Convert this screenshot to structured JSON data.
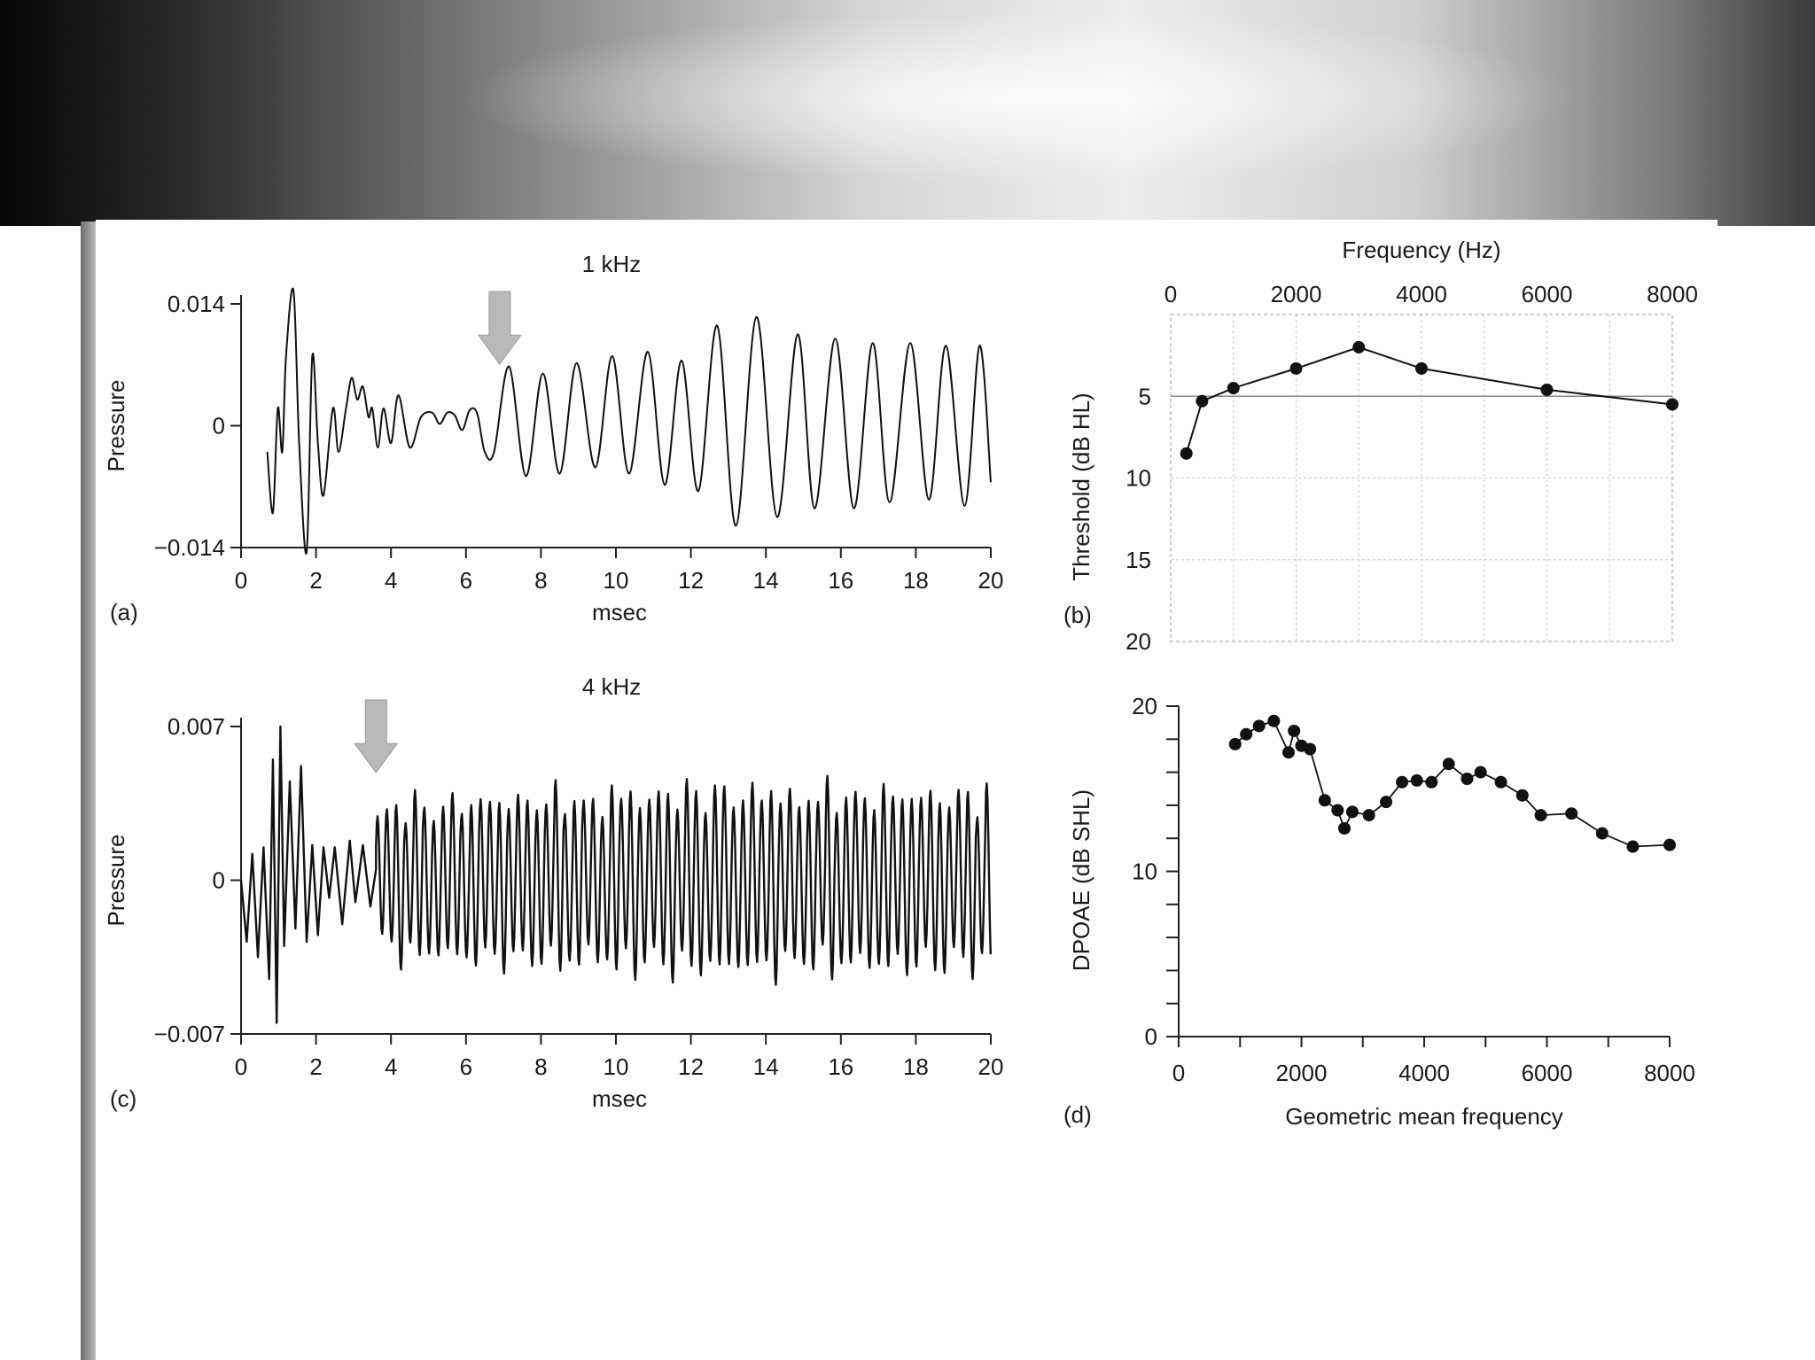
{
  "chart_data": [
    {
      "id": "a",
      "panel_label": "(a)",
      "type": "line",
      "title": "1 kHz",
      "xlabel": "msec",
      "ylabel": "Pressure",
      "xlim": [
        0,
        20
      ],
      "ylim": [
        -0.014,
        0.014
      ],
      "xticks": [
        0,
        2,
        4,
        6,
        8,
        10,
        12,
        14,
        16,
        18,
        20
      ],
      "xtick_labels": [
        "0",
        "2",
        "4",
        "6",
        "8",
        "10",
        "12",
        "14",
        "16",
        "18",
        "20"
      ],
      "yticks": [
        -0.014,
        0,
        0.014
      ],
      "ytick_labels": [
        "−0.014",
        "0",
        "0.014"
      ],
      "arrow_at_msec": 6.9,
      "x": [
        0.7,
        0.85,
        0.98,
        1.1,
        1.2,
        1.4,
        1.55,
        1.75,
        1.9,
        2.05,
        2.2,
        2.45,
        2.6,
        2.8,
        2.95,
        3.1,
        3.25,
        3.4,
        3.5,
        3.65,
        3.8,
        4.0,
        4.2,
        4.5,
        4.8,
        5.1,
        5.3,
        5.5,
        5.7,
        5.9,
        6.1,
        6.3,
        6.5,
        6.75,
        7.15,
        7.6,
        8.05,
        8.5,
        8.95,
        9.45,
        9.9,
        10.35,
        10.85,
        11.3,
        11.75,
        12.2,
        12.7,
        13.2,
        13.75,
        14.3,
        14.85,
        15.3,
        15.85,
        16.35,
        16.85,
        17.3,
        17.85,
        18.35,
        18.8,
        19.3,
        19.7,
        20.0
      ],
      "y": [
        -0.003,
        -0.01,
        0.002,
        -0.003,
        0.008,
        0.0155,
        -0.002,
        -0.0145,
        0.008,
        -0.002,
        -0.008,
        0.002,
        -0.003,
        0.002,
        0.0055,
        0.003,
        0.0045,
        0.001,
        0.002,
        -0.0025,
        0.002,
        -0.002,
        0.0035,
        -0.0025,
        0.001,
        0.0015,
        0.0002,
        0.0015,
        0.0012,
        -0.0005,
        0.0018,
        0.0014,
        -0.003,
        -0.003,
        0.0068,
        -0.0058,
        0.006,
        -0.0055,
        0.0072,
        -0.0048,
        0.008,
        -0.0055,
        0.0085,
        -0.0068,
        0.0075,
        -0.0075,
        0.0115,
        -0.0115,
        0.0125,
        -0.0105,
        0.0105,
        -0.0095,
        0.01,
        -0.0095,
        0.0095,
        -0.0088,
        0.0095,
        -0.0085,
        0.0092,
        -0.0092,
        0.0092,
        -0.0065
      ]
    },
    {
      "id": "b",
      "panel_label": "(b)",
      "type": "line",
      "title": "Frequency (Hz)",
      "xlabel": "",
      "ylabel": "Threshold (dB HL)",
      "xlim": [
        0,
        8000
      ],
      "ylim": [
        20,
        0
      ],
      "xticks": [
        0,
        2000,
        4000,
        6000,
        8000
      ],
      "xtick_labels": [
        "0",
        "2000",
        "4000",
        "6000",
        "8000"
      ],
      "yticks": [
        5,
        10,
        15,
        20
      ],
      "ytick_labels": [
        "5",
        "10",
        "15",
        "20"
      ],
      "reference_line": 5,
      "grid": true,
      "x": [
        250,
        500,
        1000,
        2000,
        3000,
        4000,
        6000,
        8000
      ],
      "y": [
        8.5,
        5.3,
        4.5,
        3.3,
        2.0,
        3.3,
        4.6,
        5.5
      ]
    },
    {
      "id": "c",
      "panel_label": "(c)",
      "type": "line",
      "title": "4 kHz",
      "xlabel": "msec",
      "ylabel": "Pressure",
      "xlim": [
        0,
        20
      ],
      "ylim": [
        -0.007,
        0.007
      ],
      "xticks": [
        0,
        2,
        4,
        6,
        8,
        10,
        12,
        14,
        16,
        18,
        20
      ],
      "xtick_labels": [
        "0",
        "2",
        "4",
        "6",
        "8",
        "10",
        "12",
        "14",
        "16",
        "18",
        "20"
      ],
      "yticks": [
        -0.007,
        0,
        0.007
      ],
      "ytick_labels": [
        "−0.007",
        "0",
        "0.007"
      ],
      "arrow_at_msec": 3.6,
      "x": [
        0.0,
        0.15,
        0.3,
        0.45,
        0.6,
        0.75,
        0.85,
        0.95,
        1.05,
        1.15,
        1.3,
        1.45,
        1.6,
        1.75,
        1.9,
        2.05,
        2.2,
        2.35,
        2.5,
        2.7,
        2.9,
        3.05,
        3.25,
        3.45,
        3.6
      ],
      "y": [
        0.0,
        -0.0028,
        0.0012,
        -0.0035,
        0.0015,
        -0.0045,
        0.0055,
        -0.0065,
        0.007,
        -0.003,
        0.0045,
        -0.0022,
        0.0052,
        -0.0028,
        0.0016,
        -0.0025,
        0.0015,
        -0.0008,
        0.0015,
        -0.002,
        0.0018,
        -0.001,
        0.0016,
        -0.0012,
        0.0005
      ],
      "oscillation": {
        "start_msec": 3.6,
        "end_msec": 20.0,
        "cycle_msec": 0.25,
        "envelope_start": 0.0033,
        "envelope_mid": 0.004,
        "envelope_end": 0.0038
      }
    },
    {
      "id": "d",
      "panel_label": "(d)",
      "type": "scatter",
      "title": "",
      "xlabel": "Geometric mean frequency",
      "ylabel": "DPOAE (dB SHL)",
      "xlim": [
        0,
        8000
      ],
      "ylim": [
        0,
        20
      ],
      "xticks": [
        0,
        2000,
        4000,
        6000,
        8000
      ],
      "xtick_labels": [
        "0",
        "2000",
        "4000",
        "6000",
        "8000"
      ],
      "yticks": [
        0,
        10,
        20
      ],
      "ytick_labels": [
        "0",
        "10",
        "20"
      ],
      "connected": true,
      "x": [
        920,
        1100,
        1310,
        1550,
        1790,
        1880,
        2000,
        2140,
        2380,
        2590,
        2700,
        2830,
        3100,
        3380,
        3640,
        3880,
        4120,
        4400,
        4700,
        4920,
        5250,
        5600,
        5900,
        6400,
        6900,
        7400,
        8000
      ],
      "y": [
        17.7,
        18.3,
        18.8,
        19.1,
        17.2,
        18.5,
        17.6,
        17.4,
        14.3,
        13.7,
        12.6,
        13.6,
        13.4,
        14.2,
        15.4,
        15.5,
        15.4,
        16.5,
        15.6,
        16.0,
        15.4,
        14.6,
        13.4,
        13.5,
        12.3,
        11.5,
        11.6
      ]
    }
  ]
}
